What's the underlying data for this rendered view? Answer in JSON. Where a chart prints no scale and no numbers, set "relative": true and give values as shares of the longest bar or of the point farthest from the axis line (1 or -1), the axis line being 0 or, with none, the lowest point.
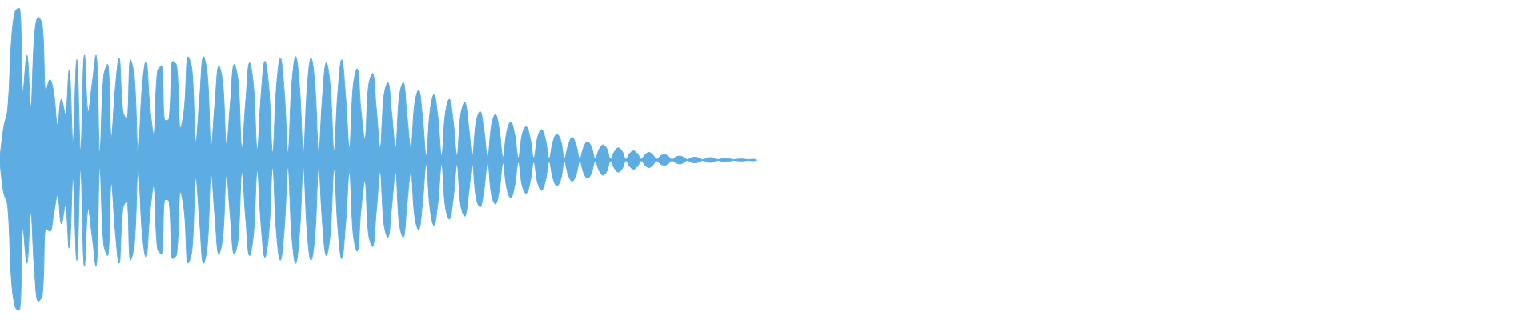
{
  "chart_data": {
    "type": "area",
    "relative": true,
    "categories": [
      null,
      null,
      null,
      null,
      null,
      null,
      null,
      null,
      null,
      null,
      null,
      null,
      null,
      null,
      null,
      null,
      null,
      null,
      null,
      null,
      null,
      null,
      null,
      null,
      null,
      null,
      null,
      null,
      null,
      null,
      null,
      null,
      null,
      null,
      null,
      null,
      null,
      null,
      null,
      null,
      null,
      null,
      null,
      null,
      null,
      null,
      null,
      null,
      null,
      null,
      null,
      null,
      null,
      null,
      null,
      null,
      null,
      null,
      null,
      null,
      null,
      null,
      null,
      null,
      null,
      null,
      null,
      null,
      null,
      null,
      null,
      null,
      null,
      null,
      null,
      null,
      null,
      null,
      null,
      null,
      null,
      null,
      null,
      null,
      null,
      null,
      null,
      null,
      null,
      null,
      null,
      null,
      null,
      null,
      null,
      null,
      null,
      null,
      null,
      null,
      null,
      null,
      null,
      null,
      null,
      null,
      null,
      null,
      null,
      null,
      null,
      null,
      null,
      null,
      null,
      null,
      null,
      null,
      null,
      null,
      null,
      null,
      null,
      null,
      null,
      null,
      null,
      null,
      null,
      null,
      null,
      null,
      null,
      null,
      null,
      null,
      null,
      null,
      null,
      null,
      null,
      null,
      null,
      null,
      null,
      null,
      null,
      null,
      null,
      null,
      null,
      null,
      null,
      null,
      null,
      null,
      null,
      null,
      null,
      null,
      null,
      null,
      null,
      null,
      null,
      null,
      null,
      null,
      null,
      null,
      null,
      null,
      null,
      null,
      null,
      null,
      null,
      null,
      null,
      null,
      null,
      null,
      null,
      null,
      null,
      null,
      null,
      null,
      null,
      null,
      null,
      null,
      null,
      null,
      null,
      null,
      null,
      null
    ],
    "series": [
      {
        "color": "#5dade2",
        "values": [
          0.02,
          0.22,
          0.33,
          0.79,
          0.98,
          1,
          0.45,
          0.69,
          0.35,
          0.82,
          0.94,
          0.89,
          0.45,
          0.53,
          0.44,
          0.23,
          0.4,
          0.3,
          0.59,
          0.12,
          0.66,
          0.06,
          0.69,
          0.32,
          0.5,
          0.69,
          0.05,
          0.55,
          0.63,
          0.15,
          0.46,
          0.67,
          0.32,
          0.27,
          0.66,
          0.54,
          0.05,
          0.47,
          0.65,
          0.36,
          0.17,
          0.58,
          0.62,
          0.26,
          0.27,
          0.65,
          0.62,
          0.21,
          0.34,
          0.68,
          0.59,
          0.12,
          0.41,
          0.68,
          0.56,
          0.09,
          0.38,
          0.62,
          0.51,
          0.1,
          0.38,
          0.63,
          0.52,
          0.08,
          0.39,
          0.64,
          0.49,
          0.07,
          0.43,
          0.65,
          0.48,
          0.05,
          0.48,
          0.67,
          0.46,
          0.05,
          0.5,
          0.68,
          0.48,
          0.05,
          0.47,
          0.67,
          0.5,
          0.05,
          0.42,
          0.64,
          0.49,
          0.06,
          0.45,
          0.66,
          0.42,
          0.08,
          0.49,
          0.6,
          0.33,
          0.14,
          0.49,
          0.57,
          0.34,
          0.08,
          0.42,
          0.51,
          0.31,
          0.08,
          0.42,
          0.51,
          0.29,
          0.08,
          0.37,
          0.46,
          0.29,
          0.03,
          0.32,
          0.43,
          0.29,
          0.03,
          0.31,
          0.4,
          0.26,
          0.03,
          0.3,
          0.38,
          0.23,
          0.03,
          0.25,
          0.32,
          0.2,
          0.02,
          0.23,
          0.3,
          0.2,
          0.02,
          0.19,
          0.25,
          0.17,
          0.015,
          0.17,
          0.22,
          0.15,
          0.015,
          0.15,
          0.2,
          0.14,
          0.01,
          0.12,
          0.17,
          0.13,
          0.01,
          0.1,
          0.15,
          0.1,
          0.008,
          0.085,
          0.12,
          0.088,
          0.008,
          0.068,
          0.1,
          0.075,
          0.006,
          0.054,
          0.08,
          0.058,
          0.005,
          0.043,
          0.06,
          0.042,
          0.005,
          0.035,
          0.05,
          0.034,
          0.005,
          0.026,
          0.037,
          0.025,
          0.004,
          0.019,
          0.026,
          0.018,
          0.003,
          0.014,
          0.019,
          0.013,
          0.003,
          0.011,
          0.016,
          0.011,
          0.003,
          0.008,
          0.011,
          0.008,
          0.003,
          0.005,
          0.007,
          0.005,
          0.003,
          0.005,
          0.003
        ]
      },
      {
        "color": "#5dade2",
        "values": [
          -0.02,
          -0.22,
          -0.3,
          -0.79,
          -0.97,
          -0.99,
          -0.45,
          -0.68,
          -0.35,
          -0.73,
          -0.93,
          -0.89,
          -0.45,
          -0.47,
          -0.35,
          -0.23,
          -0.42,
          -0.3,
          -0.58,
          -0.12,
          -0.66,
          -0.06,
          -0.7,
          -0.32,
          -0.5,
          -0.7,
          -0.05,
          -0.55,
          -0.63,
          -0.15,
          -0.46,
          -0.68,
          -0.32,
          -0.27,
          -0.66,
          -0.55,
          -0.05,
          -0.47,
          -0.64,
          -0.36,
          -0.17,
          -0.58,
          -0.62,
          -0.26,
          -0.27,
          -0.65,
          -0.62,
          -0.21,
          -0.34,
          -0.68,
          -0.59,
          -0.12,
          -0.41,
          -0.68,
          -0.56,
          -0.09,
          -0.38,
          -0.62,
          -0.51,
          -0.1,
          -0.38,
          -0.62,
          -0.52,
          -0.08,
          -0.39,
          -0.63,
          -0.49,
          -0.07,
          -0.43,
          -0.64,
          -0.48,
          -0.05,
          -0.48,
          -0.66,
          -0.46,
          -0.05,
          -0.5,
          -0.68,
          -0.48,
          -0.05,
          -0.47,
          -0.66,
          -0.5,
          -0.05,
          -0.42,
          -0.63,
          -0.49,
          -0.06,
          -0.45,
          -0.65,
          -0.42,
          -0.08,
          -0.49,
          -0.6,
          -0.33,
          -0.14,
          -0.49,
          -0.57,
          -0.34,
          -0.08,
          -0.42,
          -0.51,
          -0.31,
          -0.08,
          -0.42,
          -0.51,
          -0.29,
          -0.08,
          -0.37,
          -0.46,
          -0.29,
          -0.03,
          -0.32,
          -0.43,
          -0.29,
          -0.03,
          -0.31,
          -0.39,
          -0.26,
          -0.03,
          -0.3,
          -0.37,
          -0.23,
          -0.03,
          -0.25,
          -0.31,
          -0.2,
          -0.02,
          -0.23,
          -0.29,
          -0.2,
          -0.02,
          -0.19,
          -0.25,
          -0.17,
          -0.015,
          -0.17,
          -0.22,
          -0.15,
          -0.015,
          -0.15,
          -0.2,
          -0.14,
          -0.01,
          -0.12,
          -0.17,
          -0.13,
          -0.01,
          -0.1,
          -0.14,
          -0.1,
          -0.008,
          -0.085,
          -0.12,
          -0.088,
          -0.008,
          -0.068,
          -0.1,
          -0.075,
          -0.006,
          -0.054,
          -0.08,
          -0.058,
          -0.005,
          -0.043,
          -0.06,
          -0.042,
          -0.005,
          -0.035,
          -0.05,
          -0.034,
          -0.005,
          -0.026,
          -0.035,
          -0.025,
          -0.004,
          -0.019,
          -0.026,
          -0.018,
          -0.003,
          -0.014,
          -0.019,
          -0.013,
          -0.003,
          -0.011,
          -0.016,
          -0.011,
          -0.003,
          -0.008,
          -0.011,
          -0.008,
          -0.003,
          -0.005,
          -0.007,
          -0.005,
          -0.003,
          -0.005,
          -0.003
        ]
      }
    ]
  }
}
